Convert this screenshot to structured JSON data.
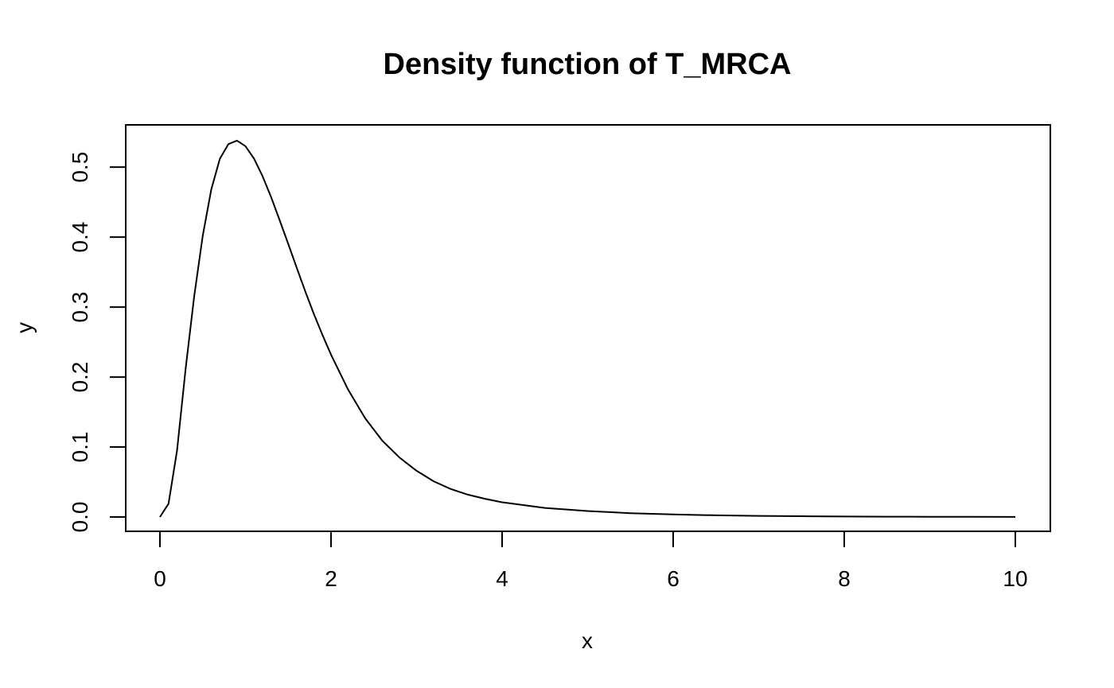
{
  "chart_data": {
    "type": "line",
    "title": "Density function of T_MRCA",
    "xlabel": "x",
    "ylabel": "y",
    "xlim": [
      0,
      10
    ],
    "ylim": [
      0,
      0.54
    ],
    "x_ticks": [
      0,
      2,
      4,
      6,
      8,
      10
    ],
    "x_tick_labels": [
      "0",
      "2",
      "4",
      "6",
      "8",
      "10"
    ],
    "y_ticks": [
      0.0,
      0.1,
      0.2,
      0.3,
      0.4,
      0.5
    ],
    "y_tick_labels": [
      "0.0",
      "0.1",
      "0.2",
      "0.3",
      "0.4",
      "0.5"
    ],
    "grid": false,
    "series": [
      {
        "name": "density",
        "color": "#000000",
        "x": [
          0,
          0.1,
          0.2,
          0.3,
          0.4,
          0.5,
          0.6,
          0.7,
          0.8,
          0.9,
          1.0,
          1.1,
          1.2,
          1.3,
          1.4,
          1.5,
          1.6,
          1.7,
          1.8,
          1.9,
          2.0,
          2.2,
          2.4,
          2.6,
          2.8,
          3.0,
          3.2,
          3.4,
          3.6,
          3.8,
          4.0,
          4.5,
          5.0,
          5.5,
          6.0,
          6.5,
          7.0,
          7.5,
          8.0,
          8.5,
          9.0,
          9.5,
          10.0
        ],
        "values": [
          0.0,
          0.019,
          0.095,
          0.212,
          0.315,
          0.402,
          0.468,
          0.512,
          0.533,
          0.538,
          0.53,
          0.512,
          0.487,
          0.457,
          0.424,
          0.39,
          0.356,
          0.322,
          0.29,
          0.26,
          0.232,
          0.182,
          0.141,
          0.109,
          0.085,
          0.066,
          0.051,
          0.04,
          0.032,
          0.026,
          0.021,
          0.013,
          0.0085,
          0.0055,
          0.0036,
          0.0024,
          0.0016,
          0.0011,
          0.0007,
          0.0005,
          0.0003,
          0.0002,
          0.0001
        ]
      }
    ]
  }
}
